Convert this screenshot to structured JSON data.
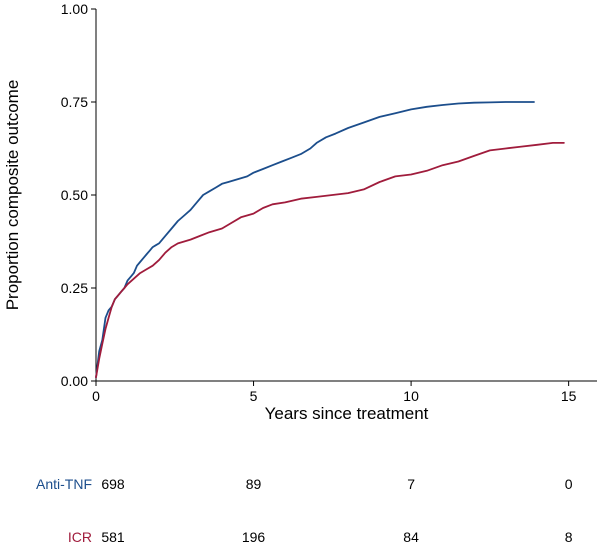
{
  "chart_data": {
    "type": "line",
    "title": "",
    "xlabel": "Years since treatment",
    "ylabel": "Proportion composite outcome",
    "xlim": [
      0,
      15.9
    ],
    "ylim": [
      0,
      1
    ],
    "xticks": [
      0,
      5,
      10,
      15
    ],
    "xtick_labels": [
      "0",
      "5",
      "10",
      "15"
    ],
    "yticks": [
      0,
      0.25,
      0.5,
      0.75,
      1
    ],
    "ytick_labels": [
      "0.00",
      "0.25",
      "0.50",
      "0.75",
      "1.00"
    ],
    "grid": false,
    "series": [
      {
        "name": "Anti-TNF",
        "color": "#1c4e8c",
        "x": [
          0,
          0.1,
          0.2,
          0.3,
          0.4,
          0.5,
          0.6,
          0.7,
          0.8,
          0.9,
          1.0,
          1.1,
          1.2,
          1.3,
          1.4,
          1.5,
          1.6,
          1.7,
          1.8,
          1.9,
          2.0,
          2.2,
          2.4,
          2.6,
          2.8,
          3.0,
          3.2,
          3.4,
          3.6,
          3.8,
          4.0,
          4.2,
          4.4,
          4.6,
          4.8,
          5.0,
          5.3,
          5.6,
          5.9,
          6.2,
          6.5,
          6.8,
          7.0,
          7.3,
          7.6,
          8.0,
          8.5,
          9.0,
          9.5,
          10.0,
          10.5,
          11.0,
          11.5,
          12.0,
          12.5,
          13.0,
          13.5,
          13.9
        ],
        "y": [
          0.01,
          0.08,
          0.11,
          0.17,
          0.19,
          0.2,
          0.22,
          0.23,
          0.24,
          0.25,
          0.27,
          0.28,
          0.29,
          0.31,
          0.32,
          0.33,
          0.34,
          0.35,
          0.36,
          0.365,
          0.37,
          0.39,
          0.41,
          0.43,
          0.445,
          0.46,
          0.48,
          0.5,
          0.51,
          0.52,
          0.53,
          0.535,
          0.54,
          0.545,
          0.55,
          0.56,
          0.57,
          0.58,
          0.59,
          0.6,
          0.61,
          0.625,
          0.64,
          0.655,
          0.665,
          0.68,
          0.695,
          0.71,
          0.72,
          0.73,
          0.737,
          0.742,
          0.746,
          0.748,
          0.749,
          0.75,
          0.75,
          0.75
        ]
      },
      {
        "name": "ICR",
        "color": "#a01c3c",
        "x": [
          0,
          0.1,
          0.2,
          0.3,
          0.4,
          0.5,
          0.6,
          0.7,
          0.8,
          0.9,
          1.0,
          1.2,
          1.4,
          1.6,
          1.8,
          2.0,
          2.2,
          2.4,
          2.6,
          2.8,
          3.0,
          3.3,
          3.6,
          4.0,
          4.3,
          4.6,
          5.0,
          5.3,
          5.6,
          6.0,
          6.5,
          7.0,
          7.5,
          8.0,
          8.5,
          9.0,
          9.5,
          10.0,
          10.5,
          11.0,
          11.5,
          12.0,
          12.5,
          13.0,
          13.5,
          14.0,
          14.5,
          14.85
        ],
        "y": [
          0.01,
          0.06,
          0.1,
          0.14,
          0.17,
          0.2,
          0.22,
          0.23,
          0.24,
          0.25,
          0.26,
          0.275,
          0.29,
          0.3,
          0.31,
          0.325,
          0.345,
          0.36,
          0.37,
          0.375,
          0.38,
          0.39,
          0.4,
          0.41,
          0.425,
          0.44,
          0.45,
          0.465,
          0.475,
          0.48,
          0.49,
          0.495,
          0.5,
          0.505,
          0.515,
          0.535,
          0.55,
          0.555,
          0.565,
          0.58,
          0.59,
          0.605,
          0.62,
          0.625,
          0.63,
          0.635,
          0.64,
          0.64
        ]
      }
    ]
  },
  "risk_table": {
    "rows": [
      {
        "label": "Anti-TNF",
        "color": "#1c4e8c",
        "counts": [
          "698",
          "89",
          "7",
          "0"
        ]
      },
      {
        "label": "ICR",
        "color": "#a01c3c",
        "counts": [
          "581",
          "196",
          "84",
          "8"
        ]
      }
    ]
  }
}
